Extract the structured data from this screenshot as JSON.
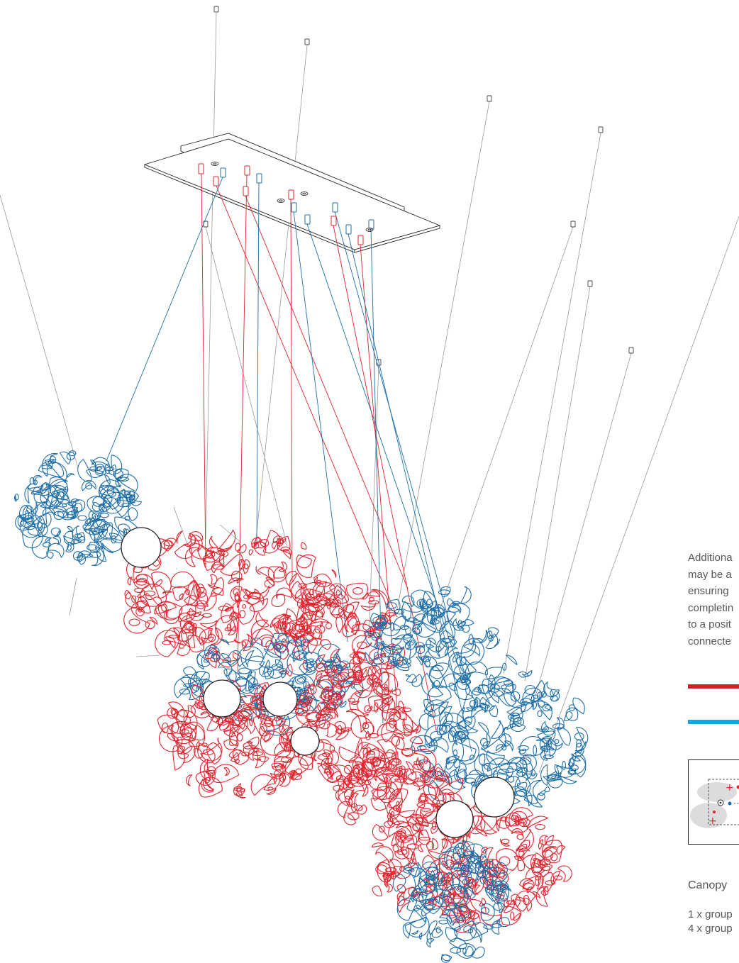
{
  "note_lines": [
    "Additiona",
    "may be a",
    "ensuring",
    "completin",
    "to a posit",
    "connecte"
  ],
  "canopy_label": "Canopy",
  "group_lines": [
    "1 x group",
    "4 x group"
  ],
  "colors": {
    "red": "#e3232e",
    "blue": "#1f6fa8",
    "legend_red": "#d0232a",
    "legend_blue": "#17a3e0",
    "wire": "#9a9a9a",
    "line": "#222222"
  },
  "icons": [
    "ceiling-anchor-icon",
    "canopy-plate",
    "cable-gripper-icon",
    "sculpture-cluster",
    "connector-ring"
  ]
}
